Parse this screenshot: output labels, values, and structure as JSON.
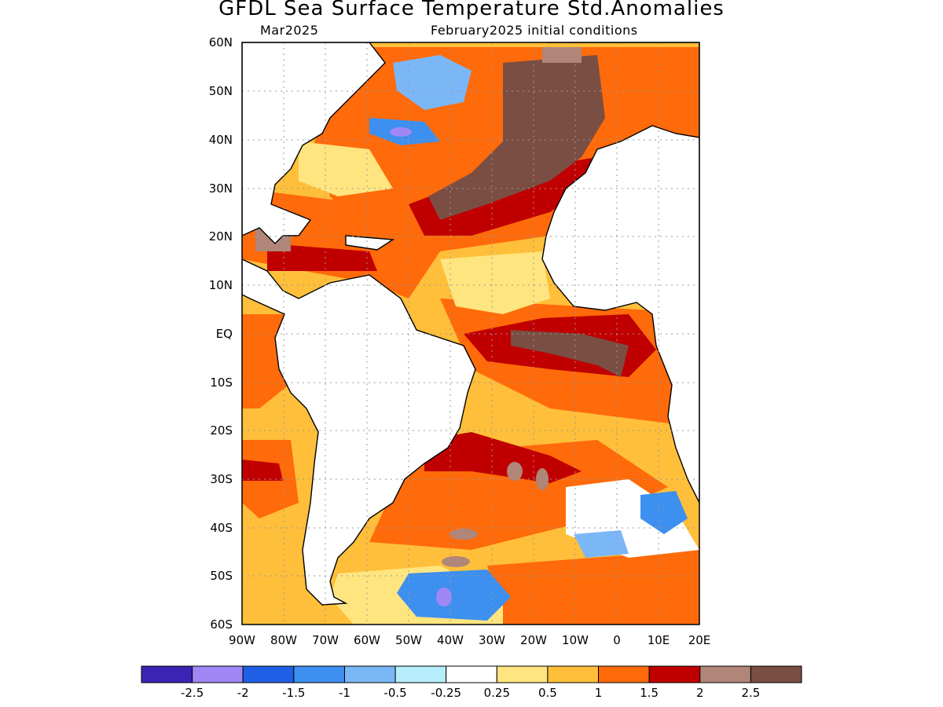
{
  "map": {
    "title": "GFDL Sea Surface Temperature Std.Anomalies",
    "subtitle_left": "Mar2025",
    "subtitle_right": "February2025 initial conditions",
    "lat_labels": [
      "60N",
      "50N",
      "40N",
      "30N",
      "20N",
      "10N",
      "EQ",
      "10S",
      "20S",
      "30S",
      "40S",
      "50S",
      "60S"
    ],
    "lon_labels": [
      "90W",
      "80W",
      "70W",
      "60W",
      "50W",
      "40W",
      "30W",
      "20W",
      "10W",
      "0",
      "10E",
      "20E"
    ],
    "lat_range": [
      -60,
      60
    ],
    "lon_range": [
      -90,
      20
    ],
    "grid": true
  },
  "colorbar": {
    "colors": [
      "#3b24b4",
      "#9f87f5",
      "#2060e6",
      "#3d8ff0",
      "#7bb7f7",
      "#b5eefa",
      "#ffffff",
      "#ffe57f",
      "#ffbf3a",
      "#ff6a0a",
      "#c00000",
      "#b08678",
      "#7a4e43"
    ],
    "tick_labels": [
      "-2.5",
      "-2",
      "-1.5",
      "-1",
      "-0.5",
      "-0.25",
      "0.25",
      "0.5",
      "1",
      "1.5",
      "2",
      "2.5"
    ]
  }
}
